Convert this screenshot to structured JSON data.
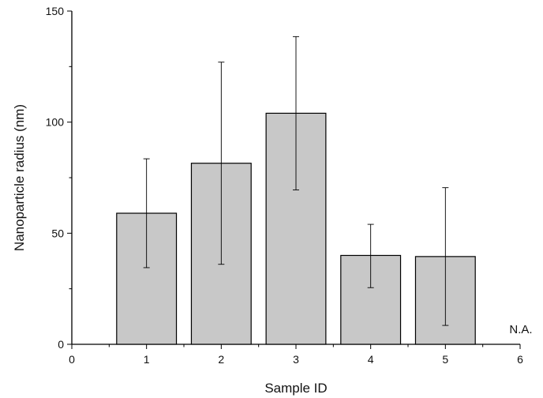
{
  "chart_data": {
    "type": "bar",
    "title": "",
    "xlabel": "Sample ID",
    "ylabel": "Nanoparticle radius (nm)",
    "categories": [
      "1",
      "2",
      "3",
      "4",
      "5"
    ],
    "x": [
      1,
      2,
      3,
      4,
      5
    ],
    "values": [
      59,
      81.5,
      104,
      40,
      39.5
    ],
    "error_low": [
      34.5,
      36,
      69.5,
      25.5,
      8.5
    ],
    "error_high": [
      83.5,
      127,
      138.5,
      54,
      70.5
    ],
    "xlim": [
      0,
      6
    ],
    "ylim": [
      0,
      150
    ],
    "xticks": [
      0,
      1,
      2,
      3,
      4,
      5,
      6
    ],
    "yticks": [
      0,
      50,
      100,
      150
    ],
    "bar_width": 0.8,
    "grid": false,
    "legend": "none",
    "annotations": [
      {
        "text": "N.A.",
        "x": 6,
        "y": 0
      }
    ],
    "colors": {
      "bar_fill": "#c8c8c8",
      "bar_stroke": "#000000",
      "axis": "#000000"
    }
  }
}
